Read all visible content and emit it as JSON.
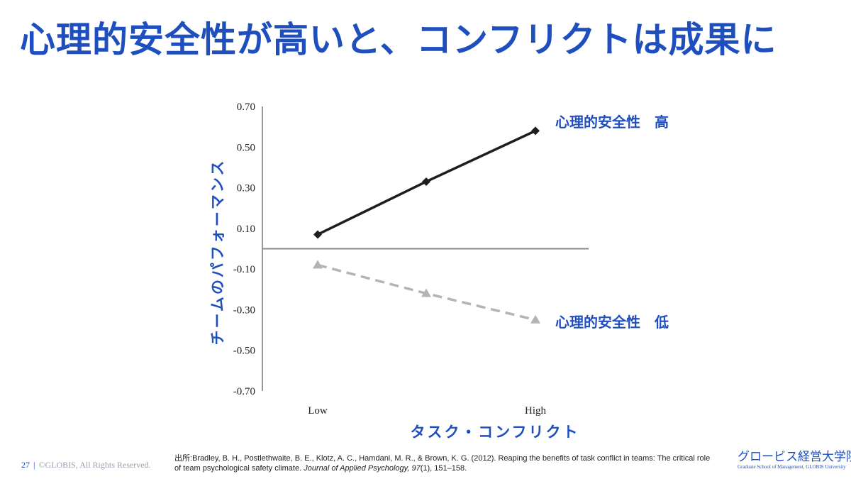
{
  "title": "心理的安全性が高いと、コンフリクトは成果に",
  "chart_data": {
    "type": "line",
    "categories": [
      "Low",
      "",
      "High"
    ],
    "y_ticks": [
      "0.70",
      "0.50",
      "0.30",
      "0.10",
      "-0.10",
      "-0.30",
      "-0.50",
      "-0.70"
    ],
    "ylim": [
      -0.7,
      0.7
    ],
    "xlabel": "タスク・コンフリクト",
    "ylabel": "チームのパフォーマンス",
    "series": [
      {
        "name": "心理的安全性　高",
        "values": [
          0.07,
          0.33,
          0.58
        ],
        "color": "#1e1e1e",
        "style": "solid",
        "marker": "diamond"
      },
      {
        "name": "心理的安全性　低",
        "values": [
          -0.08,
          -0.22,
          -0.35
        ],
        "color": "#b4b4b4",
        "style": "dashed",
        "marker": "triangle"
      }
    ]
  },
  "citation": {
    "prefix": "出所:",
    "text": "Bradley, B. H., Postlethwaite, B. E., Klotz, A. C., Hamdani, M. R., & Brown, K. G. (2012). Reaping the benefits of task conflict in teams: The critical role of team psychological safety climate.",
    "journal": "Journal of Applied Psychology, 97",
    "tail": "(1), 151–158."
  },
  "footer": {
    "page_number": "27",
    "separator": "|",
    "copyright": "©GLOBIS, All Rights Reserved."
  },
  "logo": {
    "jp": "グロービス経営大学院",
    "en": "Graduate School of Management, GLOBIS University"
  }
}
